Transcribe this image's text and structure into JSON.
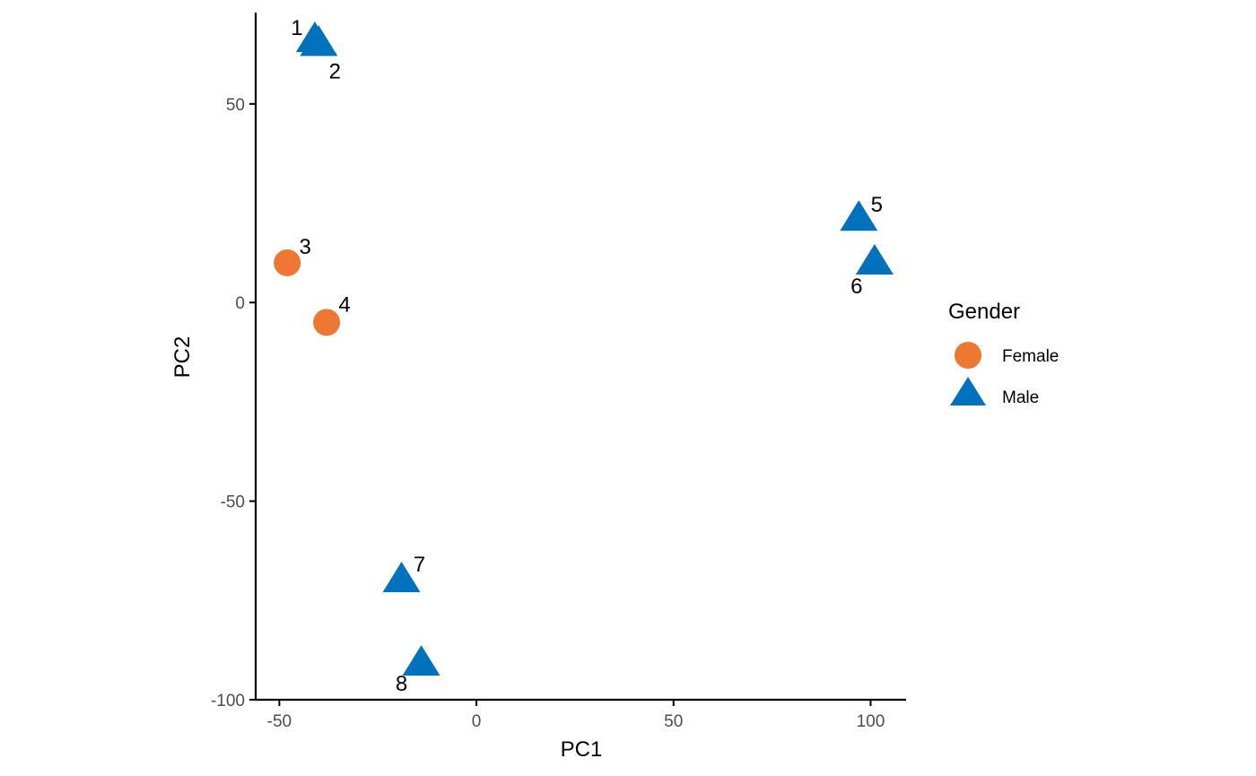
{
  "chart_data": {
    "type": "scatter",
    "xlabel": "PC1",
    "ylabel": "PC2",
    "xlim": [
      -56,
      109
    ],
    "ylim": [
      -100,
      73
    ],
    "x_ticks": [
      -50,
      0,
      50,
      100
    ],
    "y_ticks": [
      -100,
      -50,
      0,
      50
    ],
    "x_tick_labels": [
      "-50",
      "0",
      "50",
      "100"
    ],
    "y_tick_labels": [
      "-100",
      "-50",
      "0",
      "50"
    ],
    "grid": false,
    "legend": {
      "title": "Gender",
      "placement": "right",
      "entries": [
        {
          "label": "Female",
          "shape": "circle",
          "color": "#EE7733"
        },
        {
          "label": "Male",
          "shape": "triangle",
          "color": "#0072BD"
        }
      ]
    },
    "points": [
      {
        "label": "1",
        "x": -41,
        "y": 66,
        "group": "Male"
      },
      {
        "label": "2",
        "x": -40,
        "y": 65,
        "group": "Male"
      },
      {
        "label": "3",
        "x": -48,
        "y": 10,
        "group": "Female"
      },
      {
        "label": "4",
        "x": -38,
        "y": -5,
        "group": "Female"
      },
      {
        "label": "5",
        "x": 97,
        "y": 21,
        "group": "Male"
      },
      {
        "label": "6",
        "x": 101,
        "y": 10,
        "group": "Male"
      },
      {
        "label": "7",
        "x": -19,
        "y": -70,
        "group": "Male"
      },
      {
        "label": "8",
        "x": -14,
        "y": -91,
        "group": "Male"
      }
    ]
  }
}
